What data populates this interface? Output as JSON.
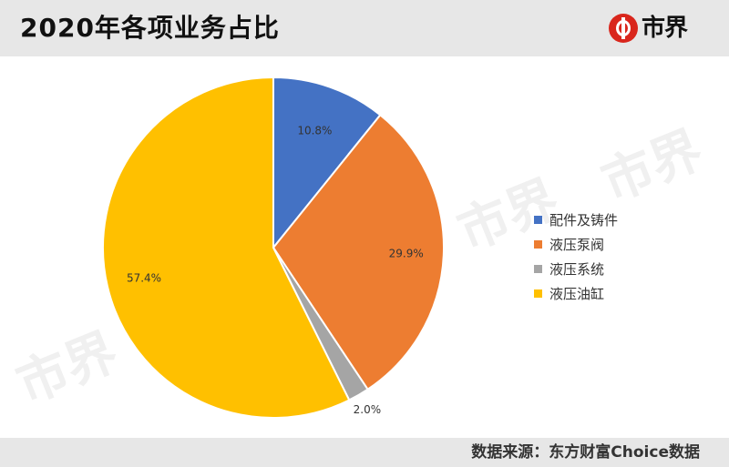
{
  "header": {
    "title": "2020年各项业务占比",
    "logo_text": "市界"
  },
  "watermark_text": "市界",
  "footer": {
    "source": "数据来源：东方财富Choice数据"
  },
  "chart_data": {
    "type": "pie",
    "title": "2020年各项业务占比",
    "categories": [
      "配件及铸件",
      "液压泵阀",
      "液压系统",
      "液压油缸"
    ],
    "values": [
      10.8,
      29.9,
      2.0,
      57.4
    ],
    "labels": [
      "10.8%",
      "29.9%",
      "2.0%",
      "57.4%"
    ],
    "colors": [
      "#4472c4",
      "#ed7d31",
      "#a5a5a5",
      "#ffc000"
    ],
    "legend_position": "right"
  }
}
